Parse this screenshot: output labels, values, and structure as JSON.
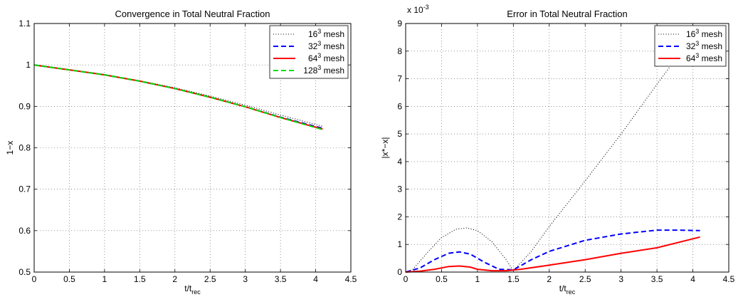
{
  "chart_data": [
    {
      "type": "line",
      "title": "Convergence in Total Neutral Fraction",
      "xlabel": "t/t",
      "xlabel_sub": "rec",
      "ylabel": "1−x",
      "xlim": [
        0,
        4.5
      ],
      "ylim": [
        0.5,
        1.1
      ],
      "grid": true,
      "legend_position": "top-right",
      "xticks": [
        0,
        0.5,
        1,
        1.5,
        2,
        2.5,
        3,
        3.5,
        4,
        4.5
      ],
      "yticks": [
        0.5,
        0.6,
        0.7,
        0.8,
        0.9,
        1,
        1.1
      ],
      "series": [
        {
          "name": "16",
          "sup": "3",
          "suffix": " mesh",
          "color": "#000000",
          "style": "dotted",
          "x": [
            0,
            0.5,
            1,
            1.5,
            2,
            2.5,
            3,
            3.5,
            4.1
          ],
          "y": [
            1.0,
            0.989,
            0.977,
            0.962,
            0.945,
            0.925,
            0.903,
            0.879,
            0.852
          ]
        },
        {
          "name": "32",
          "sup": "3",
          "suffix": " mesh",
          "color": "#0000ff",
          "style": "dashed",
          "x": [
            0,
            0.5,
            1,
            1.5,
            2,
            2.5,
            3,
            3.5,
            4.1
          ],
          "y": [
            1.0,
            0.988,
            0.976,
            0.961,
            0.943,
            0.922,
            0.899,
            0.874,
            0.847
          ]
        },
        {
          "name": "64",
          "sup": "3",
          "suffix": " mesh",
          "color": "#ff0000",
          "style": "solid",
          "x": [
            0,
            0.5,
            1,
            1.5,
            2,
            2.5,
            3,
            3.5,
            4.1
          ],
          "y": [
            1.0,
            0.988,
            0.976,
            0.961,
            0.943,
            0.922,
            0.899,
            0.873,
            0.845
          ]
        },
        {
          "name": "128",
          "sup": "3",
          "suffix": " mesh",
          "color": "#00dd00",
          "style": "dashed",
          "x": [
            0,
            0.5,
            1,
            1.5,
            2,
            2.5,
            3,
            3.5,
            4.1
          ],
          "y": [
            1.0,
            0.988,
            0.976,
            0.961,
            0.943,
            0.922,
            0.899,
            0.873,
            0.844
          ]
        }
      ]
    },
    {
      "type": "line",
      "title": "Error in Total Neutral Fraction",
      "xlabel": "t/t",
      "xlabel_sub": "rec",
      "ylabel": "|x*−x|",
      "xlim": [
        0,
        4.5
      ],
      "ylim": [
        0,
        9
      ],
      "y_multiplier": "x 10",
      "y_multiplier_exp": "-3",
      "grid": true,
      "legend_position": "top-right",
      "xticks": [
        0,
        0.5,
        1,
        1.5,
        2,
        2.5,
        3,
        3.5,
        4,
        4.5
      ],
      "yticks": [
        0,
        1,
        2,
        3,
        4,
        5,
        6,
        7,
        8,
        9
      ],
      "series": [
        {
          "name": "16",
          "sup": "3",
          "suffix": " mesh",
          "color": "#000000",
          "style": "dotted",
          "x": [
            0,
            0.1,
            0.3,
            0.5,
            0.7,
            0.85,
            1.0,
            1.2,
            1.4,
            1.5,
            1.75,
            2.0,
            2.5,
            3.0,
            3.5,
            4.1
          ],
          "y": [
            0,
            0.1,
            0.7,
            1.25,
            1.55,
            1.6,
            1.5,
            1.1,
            0.45,
            0.05,
            0.75,
            1.65,
            3.3,
            5.0,
            6.8,
            8.9
          ]
        },
        {
          "name": "32",
          "sup": "3",
          "suffix": " mesh",
          "color": "#0000ff",
          "style": "dashed",
          "x": [
            0,
            0.2,
            0.4,
            0.6,
            0.75,
            0.9,
            1.1,
            1.3,
            1.5,
            1.75,
            2.0,
            2.5,
            3.0,
            3.5,
            3.8,
            4.1
          ],
          "y": [
            0,
            0.15,
            0.45,
            0.68,
            0.73,
            0.65,
            0.35,
            0.1,
            0.08,
            0.45,
            0.75,
            1.15,
            1.38,
            1.52,
            1.52,
            1.5
          ]
        },
        {
          "name": "64",
          "sup": "3",
          "suffix": " mesh",
          "color": "#ff0000",
          "style": "solid",
          "x": [
            0,
            0.2,
            0.4,
            0.6,
            0.75,
            0.9,
            1.0,
            1.2,
            1.4,
            1.6,
            2.0,
            2.5,
            3.0,
            3.5,
            4.1
          ],
          "y": [
            0,
            0.03,
            0.1,
            0.2,
            0.22,
            0.18,
            0.1,
            0.05,
            0.05,
            0.1,
            0.25,
            0.45,
            0.68,
            0.88,
            1.27
          ]
        }
      ]
    }
  ]
}
